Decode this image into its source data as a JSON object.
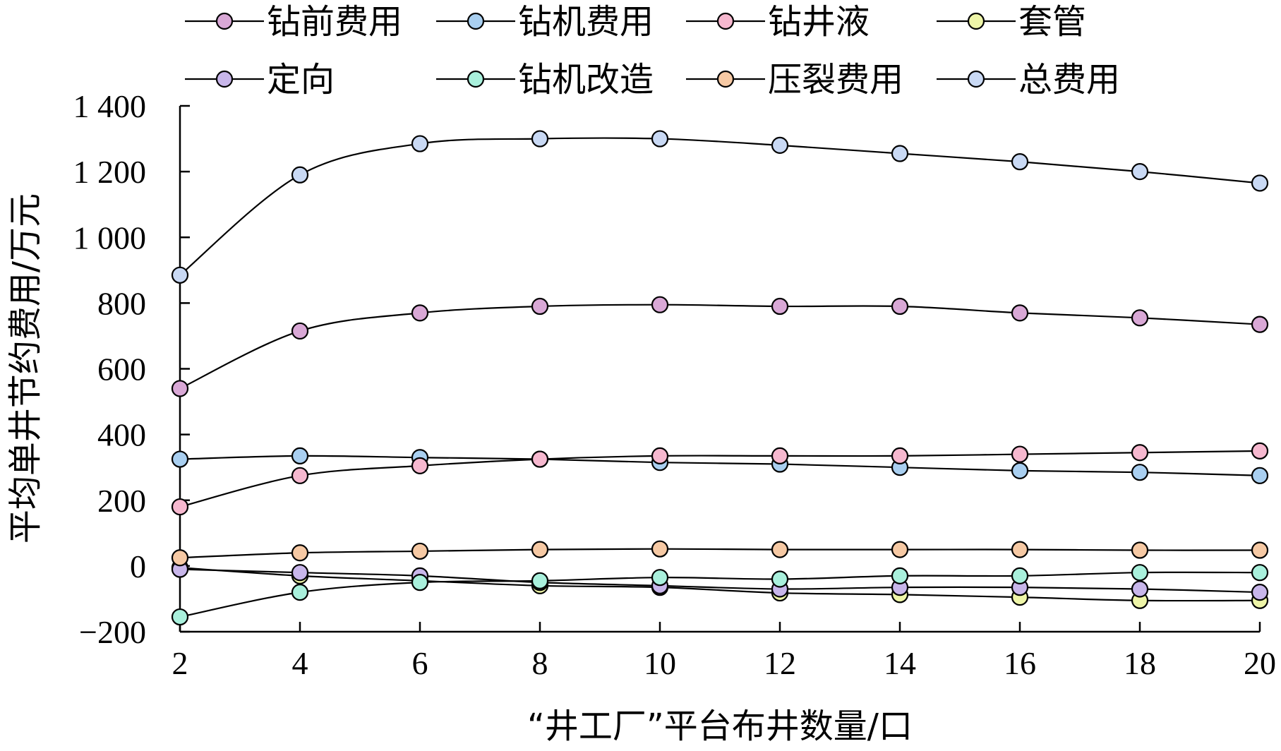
{
  "chart_data": {
    "type": "line",
    "x": [
      2,
      4,
      6,
      8,
      10,
      12,
      14,
      16,
      18,
      20
    ],
    "xlabel": "“井工厂”平台布井数量/口",
    "ylabel": "平均单井节约费用/万元",
    "xlim": [
      2,
      20
    ],
    "ylim": [
      -200,
      1400
    ],
    "xticks": [
      "2",
      "4",
      "6",
      "8",
      "10",
      "12",
      "14",
      "16",
      "18",
      "20"
    ],
    "yticks": [
      "−200",
      "0",
      "200",
      "400",
      "600",
      "800",
      "1 000",
      "1 200",
      "1 400"
    ],
    "grid": false,
    "legend": "top",
    "series": [
      {
        "name": "钻前费用",
        "color": "#d9a8d6",
        "values": [
          540,
          715,
          770,
          790,
          795,
          790,
          790,
          770,
          755,
          735
        ]
      },
      {
        "name": "钻机费用",
        "color": "#a9cff0",
        "values": [
          325,
          335,
          330,
          325,
          315,
          310,
          300,
          290,
          285,
          275
        ]
      },
      {
        "name": "钻井液",
        "color": "#f6b8cf",
        "values": [
          180,
          275,
          305,
          325,
          335,
          335,
          335,
          340,
          345,
          350
        ]
      },
      {
        "name": "套管",
        "color": "#eef5a8",
        "values": [
          -5,
          -30,
          -45,
          -60,
          -65,
          -82,
          -87,
          -95,
          -105,
          -105
        ]
      },
      {
        "name": "定向",
        "color": "#c8b6ea",
        "values": [
          -10,
          -20,
          -30,
          -50,
          -60,
          -70,
          -65,
          -65,
          -70,
          -80
        ]
      },
      {
        "name": "钻机改造",
        "color": "#a9f0dc",
        "values": [
          -155,
          -80,
          -50,
          -45,
          -35,
          -40,
          -30,
          -30,
          -20,
          -20
        ]
      },
      {
        "name": "压裂费用",
        "color": "#f6c9a4",
        "values": [
          25,
          40,
          45,
          50,
          52,
          50,
          50,
          50,
          48,
          48
        ]
      },
      {
        "name": "总费用",
        "color": "#c9d9f4",
        "values": [
          885,
          1190,
          1285,
          1300,
          1300,
          1280,
          1255,
          1230,
          1200,
          1165
        ]
      }
    ]
  }
}
